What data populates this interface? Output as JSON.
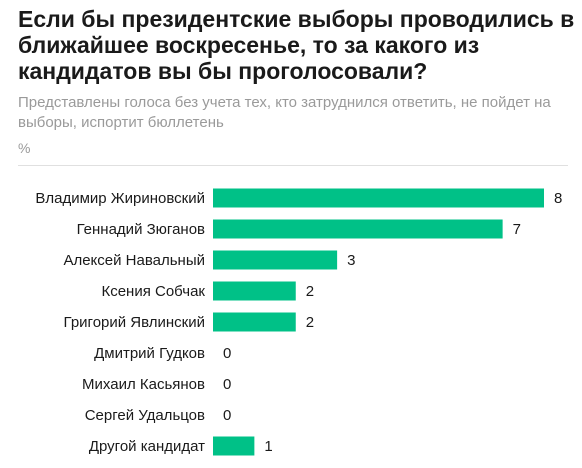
{
  "chart_data": {
    "type": "bar",
    "orientation": "horizontal",
    "title": "Если бы президентские выборы проводились в ближайшее воскресенье, то за какого из кандидатов вы бы проголосовали?",
    "subtitle": "Представлены голоса без учета тех, кто затруднился ответить, не пойдет на выборы, испортит бюллетень",
    "unit": "%",
    "categories": [
      "Владимир Жириновский",
      "Геннадий Зюганов",
      "Алексей Навальный",
      "Ксения Собчак",
      "Григорий Явлинский",
      "Дмитрий Гудков",
      "Михаил Касьянов",
      "Сергей Удальцов",
      "Другой кандидат"
    ],
    "values": [
      8,
      7,
      3,
      2,
      2,
      0,
      0,
      0,
      1
    ],
    "xlim": [
      0,
      8
    ],
    "grid": false,
    "legend": "none",
    "bar_color": "#00c187"
  }
}
